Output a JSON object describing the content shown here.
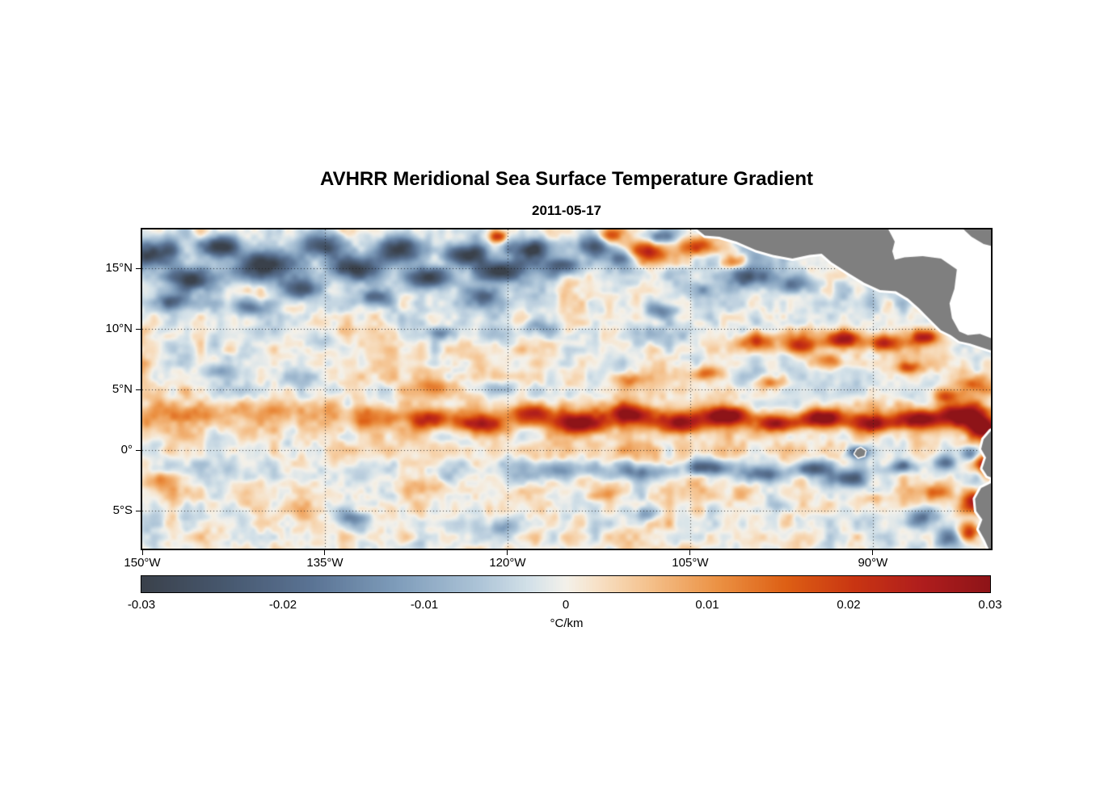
{
  "header": {
    "title": "AVHRR Meridional Sea Surface Temperature Gradient",
    "date": "2011-05-17"
  },
  "colorbar": {
    "ticks": [
      "-0.03",
      "-0.02",
      "-0.01",
      "0",
      "0.01",
      "0.02",
      "0.03"
    ],
    "unit": "°C/km"
  },
  "chart_data": {
    "type": "heatmap",
    "title": "AVHRR Meridional Sea Surface Temperature Gradient",
    "date": "2011-05-17",
    "units": "°C/km",
    "value_range": [
      -0.03,
      0.03
    ],
    "lon_range": [
      -150,
      -80.3
    ],
    "lat_range": [
      -8.1,
      18.2
    ],
    "x_ticks": [
      {
        "lon": -150,
        "label": "150°W"
      },
      {
        "lon": -135,
        "label": "135°W"
      },
      {
        "lon": -120,
        "label": "120°W"
      },
      {
        "lon": -105,
        "label": "105°W"
      },
      {
        "lon": -90,
        "label": "90°W"
      }
    ],
    "y_ticks": [
      {
        "lat": 15,
        "label": "15°N"
      },
      {
        "lat": 10,
        "label": "10°N"
      },
      {
        "lat": 5,
        "label": "5°N"
      },
      {
        "lat": 0,
        "label": "0°"
      },
      {
        "lat": -5,
        "label": "5°S"
      }
    ],
    "grid": {
      "lon_lines": [
        -135,
        -120,
        -105,
        -90
      ],
      "lat_lines": [
        15,
        10,
        5,
        0,
        -5
      ],
      "style": "dotted"
    },
    "colorbar_ticks": [
      -0.03,
      -0.02,
      -0.01,
      0,
      0.01,
      0.02,
      0.03
    ],
    "colormap": [
      {
        "t": 0.0,
        "c": "#3a414b"
      },
      {
        "t": 0.1,
        "c": "#47586f"
      },
      {
        "t": 0.2,
        "c": "#5a7394"
      },
      {
        "t": 0.3,
        "c": "#7e9cba"
      },
      {
        "t": 0.4,
        "c": "#aec5d8"
      },
      {
        "t": 0.46,
        "c": "#d5e2e9"
      },
      {
        "t": 0.5,
        "c": "#f4f1ea"
      },
      {
        "t": 0.54,
        "c": "#f7e0c4"
      },
      {
        "t": 0.6,
        "c": "#f4c08a"
      },
      {
        "t": 0.68,
        "c": "#eb9143"
      },
      {
        "t": 0.76,
        "c": "#dd5f14"
      },
      {
        "t": 0.84,
        "c": "#c93512"
      },
      {
        "t": 0.92,
        "c": "#af1d1d"
      },
      {
        "t": 1.0,
        "c": "#8e1418"
      }
    ],
    "land_color": "#7f7f7f",
    "coast_halo": "#ffffff",
    "field": {
      "bands": [
        {
          "lat": 14,
          "sigma": 4.0,
          "amp": -0.0028
        },
        {
          "lat": -3,
          "sigma": 5.0,
          "amp": 0.0016
        },
        {
          "lat": 2.6,
          "sigma": 1.4,
          "amp": 0.0045
        },
        {
          "lat": -1.6,
          "sigma": 0.9,
          "amp": -0.0035
        }
      ],
      "blobs": [
        [
          -149,
          16.2,
          2.2,
          1.1,
          -0.03
        ],
        [
          -146,
          14.0,
          2.0,
          1.0,
          -0.026
        ],
        [
          -143.5,
          16.8,
          1.8,
          0.9,
          -0.028
        ],
        [
          -140,
          15.2,
          2.4,
          1.2,
          -0.03
        ],
        [
          -137,
          13.3,
          1.6,
          0.8,
          -0.024
        ],
        [
          -135.5,
          16.9,
          1.8,
          0.9,
          -0.026
        ],
        [
          -132.5,
          15.0,
          2.0,
          1.0,
          -0.028
        ],
        [
          -129,
          16.6,
          2.2,
          1.0,
          -0.03
        ],
        [
          -126.5,
          14.2,
          1.8,
          0.9,
          -0.026
        ],
        [
          -123.5,
          16.2,
          1.8,
          0.9,
          -0.028
        ],
        [
          -120.5,
          14.8,
          1.8,
          0.9,
          -0.026
        ],
        [
          -118,
          16.6,
          1.6,
          0.8,
          -0.026
        ],
        [
          -115.5,
          15.2,
          1.6,
          0.8,
          -0.024
        ],
        [
          -113,
          16.8,
          1.4,
          0.8,
          -0.022
        ],
        [
          -147.5,
          12.3,
          1.4,
          0.7,
          -0.02
        ],
        [
          -141,
          11.8,
          1.4,
          0.7,
          -0.018
        ],
        [
          -131,
          12.6,
          1.5,
          0.7,
          -0.018
        ],
        [
          -122,
          12.8,
          1.3,
          0.7,
          -0.016
        ],
        [
          -110.5,
          15.8,
          1.2,
          0.7,
          -0.018
        ],
        [
          -107.5,
          17.6,
          1.2,
          0.6,
          -0.018
        ],
        [
          -125.5,
          9.6,
          1.0,
          0.5,
          -0.014
        ],
        [
          -135,
          8.8,
          1.2,
          0.6,
          -0.01
        ],
        [
          -144,
          6.5,
          1.2,
          0.6,
          -0.01
        ],
        [
          -107.5,
          11.5,
          1.2,
          0.6,
          -0.014
        ],
        [
          -117.5,
          10.2,
          1.5,
          0.6,
          -0.01
        ],
        [
          -100,
          14.3,
          1.8,
          0.8,
          -0.022
        ],
        [
          -96.5,
          13.6,
          1.4,
          0.7,
          -0.018
        ],
        [
          -104,
          13.2,
          1.2,
          0.6,
          -0.014
        ],
        [
          -108.5,
          16.3,
          1.8,
          0.9,
          0.026
        ],
        [
          -104.5,
          16.8,
          1.4,
          0.8,
          0.022
        ],
        [
          -111.5,
          17.7,
          1.0,
          0.6,
          0.018
        ],
        [
          -120.8,
          17.6,
          0.8,
          0.5,
          0.02
        ],
        [
          -101.5,
          15.5,
          1.0,
          0.6,
          0.016
        ],
        [
          -99.5,
          9.0,
          1.4,
          0.7,
          0.02
        ],
        [
          -96,
          8.6,
          1.4,
          0.7,
          0.024
        ],
        [
          -92.5,
          9.2,
          1.5,
          0.7,
          0.028
        ],
        [
          -89,
          8.8,
          1.4,
          0.7,
          0.026
        ],
        [
          -85.8,
          9.3,
          1.2,
          0.6,
          0.022
        ],
        [
          -93.5,
          7.3,
          1.2,
          0.6,
          0.018
        ],
        [
          -87,
          6.8,
          1.0,
          0.5,
          0.016
        ],
        [
          -110,
          5.8,
          1.3,
          0.6,
          0.016
        ],
        [
          -103.5,
          6.3,
          1.3,
          0.6,
          0.018
        ],
        [
          -98.5,
          5.6,
          1.2,
          0.5,
          0.014
        ],
        [
          -126,
          2.6,
          2.0,
          0.8,
          0.016
        ],
        [
          -122,
          2.1,
          2.0,
          0.8,
          0.02
        ],
        [
          -118,
          2.9,
          2.0,
          0.8,
          0.022
        ],
        [
          -114,
          2.2,
          2.0,
          0.8,
          0.026
        ],
        [
          -110,
          3.0,
          2.0,
          0.8,
          0.025
        ],
        [
          -106,
          2.3,
          1.8,
          0.8,
          0.027
        ],
        [
          -102,
          2.9,
          1.8,
          0.7,
          0.029
        ],
        [
          -98,
          2.2,
          1.8,
          0.7,
          0.027
        ],
        [
          -94,
          2.7,
          1.8,
          0.7,
          0.029
        ],
        [
          -90,
          2.2,
          1.8,
          0.7,
          0.027
        ],
        [
          -86,
          2.6,
          1.8,
          0.8,
          0.029
        ],
        [
          -82.5,
          2.9,
          1.8,
          1.0,
          0.032
        ],
        [
          -80.8,
          1.8,
          1.2,
          0.9,
          0.03
        ],
        [
          -146,
          3.0,
          3.0,
          0.9,
          0.007
        ],
        [
          -138,
          3.4,
          3.0,
          0.9,
          0.007
        ],
        [
          -131,
          2.8,
          2.5,
          0.8,
          0.009
        ],
        [
          -116,
          -1.6,
          3.0,
          0.7,
          -0.011
        ],
        [
          -109,
          -1.8,
          2.5,
          0.7,
          -0.015
        ],
        [
          -103.5,
          -1.4,
          2.0,
          0.6,
          -0.019
        ],
        [
          -99,
          -2.0,
          1.8,
          0.6,
          -0.017
        ],
        [
          -95,
          -1.5,
          1.5,
          0.6,
          -0.021
        ],
        [
          -92,
          -2.3,
          1.4,
          0.6,
          -0.019
        ],
        [
          -91.2,
          -0.2,
          0.9,
          0.5,
          -0.024
        ],
        [
          -87.5,
          -1.3,
          1.2,
          0.5,
          -0.017
        ],
        [
          -84,
          -1.0,
          1.0,
          0.5,
          -0.013
        ],
        [
          -133,
          -5.6,
          1.4,
          0.7,
          -0.012
        ],
        [
          -120.5,
          -6.3,
          1.2,
          0.6,
          -0.01
        ],
        [
          -108.5,
          -5.2,
          1.1,
          0.6,
          -0.013
        ],
        [
          -97.5,
          -4.6,
          1.3,
          0.6,
          -0.01
        ],
        [
          -86,
          -5.4,
          1.4,
          0.8,
          -0.017
        ],
        [
          -83.5,
          -7.2,
          1.3,
          0.8,
          -0.019
        ],
        [
          -81.6,
          -4.3,
          1.0,
          0.9,
          0.03
        ],
        [
          -82.2,
          -6.8,
          0.9,
          0.8,
          0.026
        ],
        [
          -84.5,
          -3.4,
          1.0,
          0.5,
          0.011
        ],
        [
          -90,
          -4.0,
          1.2,
          0.5,
          0.008
        ],
        [
          -112,
          -3.5,
          1.5,
          0.6,
          0.008
        ],
        [
          -126,
          -3.0,
          1.5,
          0.6,
          0.006
        ],
        [
          -143,
          -5.0,
          1.5,
          0.7,
          -0.008
        ],
        [
          -148,
          -2.5,
          1.5,
          0.7,
          0.006
        ],
        [
          -80.7,
          -1.2,
          0.8,
          0.8,
          0.024
        ],
        [
          -82,
          -0.2,
          0.9,
          0.6,
          -0.02
        ],
        [
          -121,
          5.2,
          2.0,
          0.7,
          -0.008
        ],
        [
          -115,
          4.6,
          1.8,
          0.6,
          -0.006
        ],
        [
          -126,
          5.3,
          1.8,
          0.6,
          0.007
        ],
        [
          -84,
          4.5,
          1.2,
          0.6,
          0.014
        ],
        [
          -81.5,
          5.5,
          1.0,
          0.8,
          0.016
        ]
      ],
      "noise": {
        "seed": 11,
        "octaves": [
          {
            "scale": 1.2,
            "amp": 0.0048
          },
          {
            "scale": 3.2,
            "amp": 0.0036
          },
          {
            "scale": 0.55,
            "amp": 0.0022
          }
        ]
      }
    },
    "land": {
      "draw_order": [
        "nodata_caribbean",
        "central_america",
        "caribbean_corner",
        "south_america",
        "galapagos"
      ],
      "fills": {
        "nodata_caribbean": "#ffffff",
        "central_america": "#7f7f7f",
        "caribbean_corner": "#7f7f7f",
        "south_america": "#7f7f7f",
        "galapagos": "#7f7f7f"
      },
      "halo": {
        "nodata_caribbean": 0,
        "central_america": 6,
        "caribbean_corner": 6,
        "south_america": 6,
        "galapagos": 3
      },
      "polygons": {
        "nodata_caribbean": [
          [
            -104.6,
            18.35
          ],
          [
            -103.8,
            17.7
          ],
          [
            -102.6,
            17.6
          ],
          [
            -101.2,
            17.2
          ],
          [
            -99.6,
            16.5
          ],
          [
            -98.2,
            16.1
          ],
          [
            -96.6,
            15.8
          ],
          [
            -95.2,
            16.1
          ],
          [
            -94.2,
            16.2
          ],
          [
            -93.4,
            15.5
          ],
          [
            -92.0,
            14.6
          ],
          [
            -90.7,
            13.8
          ],
          [
            -89.4,
            13.2
          ],
          [
            -88.1,
            13.1
          ],
          [
            -87.1,
            12.5
          ],
          [
            -86.2,
            11.7
          ],
          [
            -85.6,
            11.1
          ],
          [
            -85.0,
            10.5
          ],
          [
            -84.4,
            9.9
          ],
          [
            -83.6,
            9.5
          ],
          [
            -82.9,
            9.0
          ],
          [
            -82.0,
            8.8
          ],
          [
            -81.1,
            8.5
          ],
          [
            -80.2,
            8.2
          ],
          [
            -79.7,
            8.2
          ],
          [
            -79.7,
            18.45
          ]
        ],
        "central_america": [
          [
            -104.6,
            18.35
          ],
          [
            -103.8,
            17.7
          ],
          [
            -102.6,
            17.6
          ],
          [
            -101.2,
            17.2
          ],
          [
            -99.6,
            16.5
          ],
          [
            -98.2,
            16.1
          ],
          [
            -96.6,
            15.8
          ],
          [
            -95.2,
            16.1
          ],
          [
            -94.2,
            16.2
          ],
          [
            -93.4,
            15.5
          ],
          [
            -92.0,
            14.6
          ],
          [
            -90.7,
            13.8
          ],
          [
            -89.4,
            13.2
          ],
          [
            -88.1,
            13.1
          ],
          [
            -87.1,
            12.5
          ],
          [
            -86.2,
            11.7
          ],
          [
            -85.6,
            11.1
          ],
          [
            -85.0,
            10.5
          ],
          [
            -84.4,
            9.9
          ],
          [
            -83.6,
            9.5
          ],
          [
            -82.9,
            9.0
          ],
          [
            -82.0,
            8.8
          ],
          [
            -81.1,
            8.5
          ],
          [
            -80.2,
            8.2
          ],
          [
            -80.2,
            9.2
          ],
          [
            -81.2,
            9.6
          ],
          [
            -82.2,
            9.5
          ],
          [
            -82.9,
            9.8
          ],
          [
            -83.5,
            10.9
          ],
          [
            -83.7,
            12.1
          ],
          [
            -83.3,
            13.3
          ],
          [
            -83.1,
            14.9
          ],
          [
            -84.4,
            15.8
          ],
          [
            -85.9,
            16.0
          ],
          [
            -87.4,
            15.9
          ],
          [
            -88.2,
            15.7
          ],
          [
            -88.4,
            16.4
          ],
          [
            -88.2,
            17.2
          ],
          [
            -88.8,
            18.35
          ]
        ],
        "caribbean_corner": [
          [
            -82.7,
            18.35
          ],
          [
            -81.9,
            17.6
          ],
          [
            -80.9,
            17.0
          ],
          [
            -80.1,
            16.8
          ],
          [
            -79.7,
            16.9
          ],
          [
            -79.7,
            18.35
          ]
        ],
        "south_america": [
          [
            -79.7,
            1.9
          ],
          [
            -80.3,
            1.6
          ],
          [
            -80.9,
            0.9
          ],
          [
            -81.1,
            0.1
          ],
          [
            -80.7,
            -0.6
          ],
          [
            -81.0,
            -1.5
          ],
          [
            -80.6,
            -2.1
          ],
          [
            -80.1,
            -2.3
          ],
          [
            -80.3,
            -2.7
          ],
          [
            -81.1,
            -3.1
          ],
          [
            -81.6,
            -4.0
          ],
          [
            -81.5,
            -5.0
          ],
          [
            -81.0,
            -5.7
          ],
          [
            -81.3,
            -6.5
          ],
          [
            -80.8,
            -7.4
          ],
          [
            -80.4,
            -8.3
          ],
          [
            -79.7,
            -8.3
          ]
        ],
        "galapagos": [
          [
            -91.0,
            0.2
          ],
          [
            -90.6,
            -0.05
          ],
          [
            -90.7,
            -0.45
          ],
          [
            -91.2,
            -0.6
          ],
          [
            -91.5,
            -0.3
          ],
          [
            -91.3,
            0.05
          ]
        ]
      }
    }
  }
}
